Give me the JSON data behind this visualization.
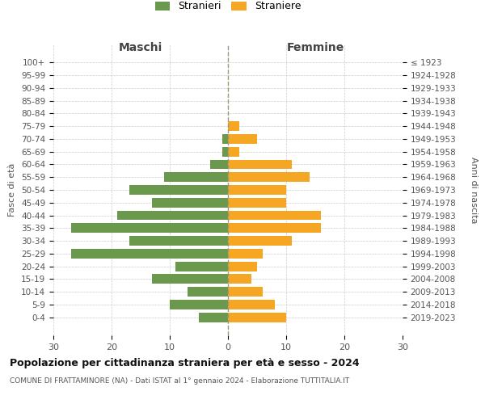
{
  "age_groups": [
    "100+",
    "95-99",
    "90-94",
    "85-89",
    "80-84",
    "75-79",
    "70-74",
    "65-69",
    "60-64",
    "55-59",
    "50-54",
    "45-49",
    "40-44",
    "35-39",
    "30-34",
    "25-29",
    "20-24",
    "15-19",
    "10-14",
    "5-9",
    "0-4"
  ],
  "birth_years": [
    "≤ 1923",
    "1924-1928",
    "1929-1933",
    "1934-1938",
    "1939-1943",
    "1944-1948",
    "1949-1953",
    "1954-1958",
    "1959-1963",
    "1964-1968",
    "1969-1973",
    "1974-1978",
    "1979-1983",
    "1984-1988",
    "1989-1993",
    "1994-1998",
    "1999-2003",
    "2004-2008",
    "2009-2013",
    "2014-2018",
    "2019-2023"
  ],
  "males": [
    0,
    0,
    0,
    0,
    0,
    0,
    1,
    1,
    3,
    11,
    17,
    13,
    19,
    27,
    17,
    27,
    9,
    13,
    7,
    10,
    5
  ],
  "females": [
    0,
    0,
    0,
    0,
    0,
    2,
    5,
    2,
    11,
    14,
    10,
    10,
    16,
    16,
    11,
    6,
    5,
    4,
    6,
    8,
    10
  ],
  "male_color": "#6a994e",
  "female_color": "#f5a623",
  "background_color": "#ffffff",
  "grid_color": "#cccccc",
  "title": "Popolazione per cittadinanza straniera per età e sesso - 2024",
  "subtitle": "COMUNE DI FRATTAMINORE (NA) - Dati ISTAT al 1° gennaio 2024 - Elaborazione TUTTITALIA.IT",
  "xlabel_left": "Maschi",
  "xlabel_right": "Femmine",
  "ylabel_left": "Fasce di età",
  "ylabel_right": "Anni di nascita",
  "legend_male": "Stranieri",
  "legend_female": "Straniere",
  "xlim": 30,
  "bar_height": 0.75
}
